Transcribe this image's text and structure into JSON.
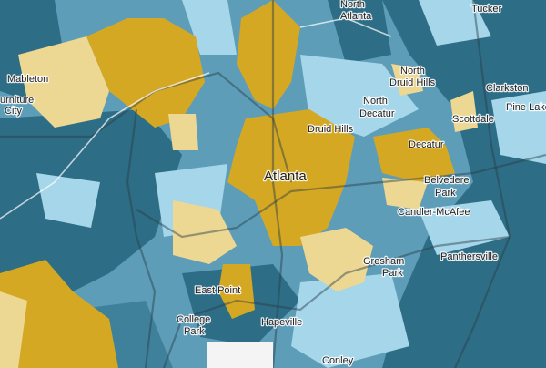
{
  "places": [
    [
      "Tucker"
    ],
    [
      "North",
      "Atlanta"
    ],
    [
      "Mableton"
    ],
    [
      "urniture",
      "City"
    ],
    [
      "Clarkston"
    ],
    [
      "North",
      "Druid Hills"
    ],
    [
      "North",
      "Decatur"
    ],
    [
      "Pine Lake"
    ],
    [
      "Scottdale"
    ],
    [
      "Druid Hills"
    ],
    [
      "Decatur"
    ],
    [
      "Atlanta"
    ],
    [
      "Belvedere",
      "Park"
    ],
    [
      "Candler-McAfee"
    ],
    [
      "Panthersville"
    ],
    [
      "Gresham",
      "Park"
    ],
    [
      "East Point"
    ],
    [
      "College",
      "Park"
    ],
    [
      "Hapeville"
    ],
    [
      "Conley"
    ]
  ]
}
